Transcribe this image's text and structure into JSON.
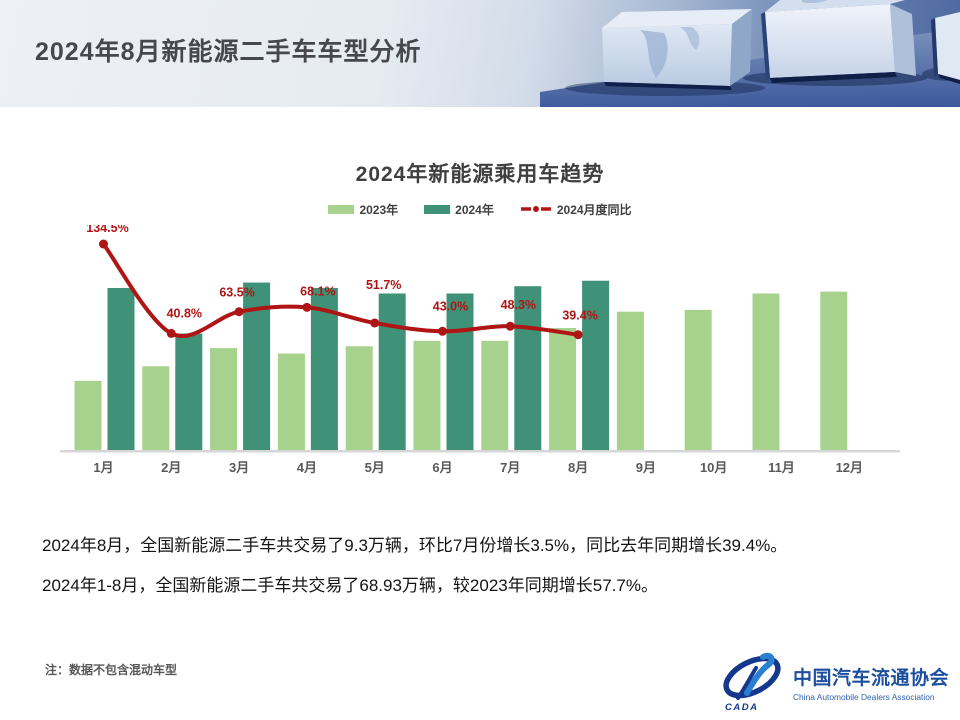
{
  "header": {
    "title": "2024年8月新能源二手车车型分析"
  },
  "chart": {
    "title": "2024年新能源乘用车趋势",
    "legend": [
      {
        "label": "2023年",
        "type": "swatch",
        "color": "#a6d28d"
      },
      {
        "label": "2024年",
        "type": "swatch",
        "color": "#3f9277"
      },
      {
        "label": "2024月度同比",
        "type": "line",
        "color": "#b01515"
      }
    ]
  },
  "chart_data": {
    "type": "bar",
    "title": "2024年新能源乘用车趋势",
    "categories": [
      "1月",
      "2月",
      "3月",
      "4月",
      "5月",
      "6月",
      "7月",
      "8月",
      "9月",
      "10月",
      "11月",
      "12月"
    ],
    "series": [
      {
        "name": "2023年",
        "type": "bar",
        "color": "#a6d28d",
        "values": [
          3.8,
          4.6,
          5.6,
          5.3,
          5.7,
          6.0,
          6.0,
          6.7,
          7.6,
          7.7,
          8.6,
          8.7
        ]
      },
      {
        "name": "2024年",
        "type": "bar",
        "color": "#3f9277",
        "values": [
          8.9,
          6.4,
          9.2,
          8.9,
          8.6,
          8.6,
          9.0,
          9.3
        ]
      },
      {
        "name": "2024月度同比",
        "type": "line",
        "color": "#b01515",
        "unit": "%",
        "values": [
          134.5,
          40.8,
          63.5,
          68.1,
          51.7,
          43.0,
          48.3,
          39.4
        ],
        "labels": [
          "134.5%",
          "40.8%",
          "63.5%",
          "68.1%",
          "51.7%",
          "43.0%",
          "48.3%",
          "39.4%"
        ]
      }
    ],
    "xlabel": "",
    "ylabel": "",
    "grid": false,
    "legend_position": "top",
    "yoy_axis_note": "secondary axis for line series (%)"
  },
  "body": {
    "paragraph1": "2024年8月，全国新能源二手车共交易了9.3万辆，环比7月份增长3.5%，同比去年同期增长39.4%。",
    "paragraph2": "2024年1-8月，全国新能源二手车共交易了68.93万辆，较2023年同期增长57.7%。"
  },
  "note": "注：数据不包含混动车型",
  "logo": {
    "badge": "CADA",
    "name_cn": "中国汽车流通协会",
    "name_en": "China Automobile Dealers Association"
  }
}
